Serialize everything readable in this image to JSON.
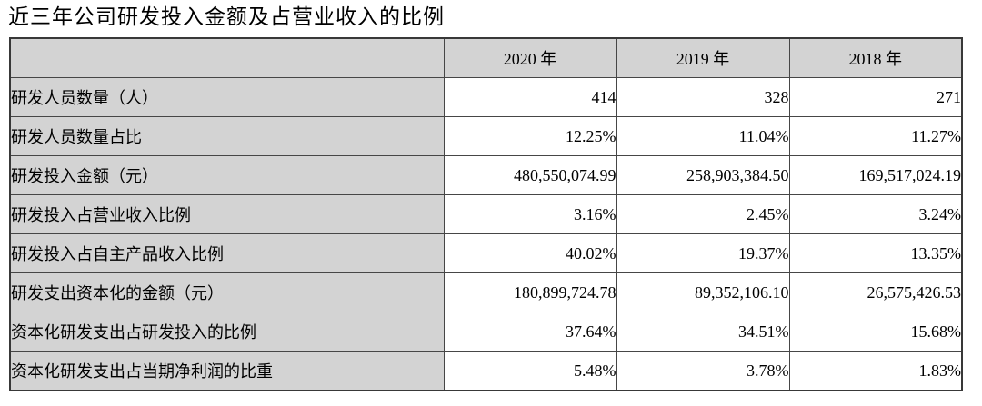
{
  "title": "近三年公司研发投入金额及占营业收入的比例",
  "table": {
    "header": {
      "corner": "",
      "years": [
        "2020 年",
        "2019 年",
        "2018 年"
      ]
    },
    "rows": [
      {
        "label": "研发人员数量（人）",
        "values": [
          "414",
          "328",
          "271"
        ]
      },
      {
        "label": "研发人员数量占比",
        "values": [
          "12.25%",
          "11.04%",
          "11.27%"
        ]
      },
      {
        "label": "研发投入金额（元）",
        "values": [
          "480,550,074.99",
          "258,903,384.50",
          "169,517,024.19"
        ]
      },
      {
        "label": "研发投入占营业收入比例",
        "values": [
          "3.16%",
          "2.45%",
          "3.24%"
        ]
      },
      {
        "label": "研发投入占自主产品收入比例",
        "values": [
          "40.02%",
          "19.37%",
          "13.35%"
        ]
      },
      {
        "label": "研发支出资本化的金额（元）",
        "values": [
          "180,899,724.78",
          "89,352,106.10",
          "26,575,426.53"
        ]
      },
      {
        "label": "资本化研发支出占研发投入的比例",
        "values": [
          "37.64%",
          "34.51%",
          "15.68%"
        ]
      },
      {
        "label": "资本化研发支出占当期净利润的比重",
        "values": [
          "5.48%",
          "3.78%",
          "1.83%"
        ]
      }
    ]
  },
  "colors": {
    "cell_gray": "#d3d3d3",
    "border": "#464646",
    "text": "#000000",
    "background": "#ffffff"
  }
}
